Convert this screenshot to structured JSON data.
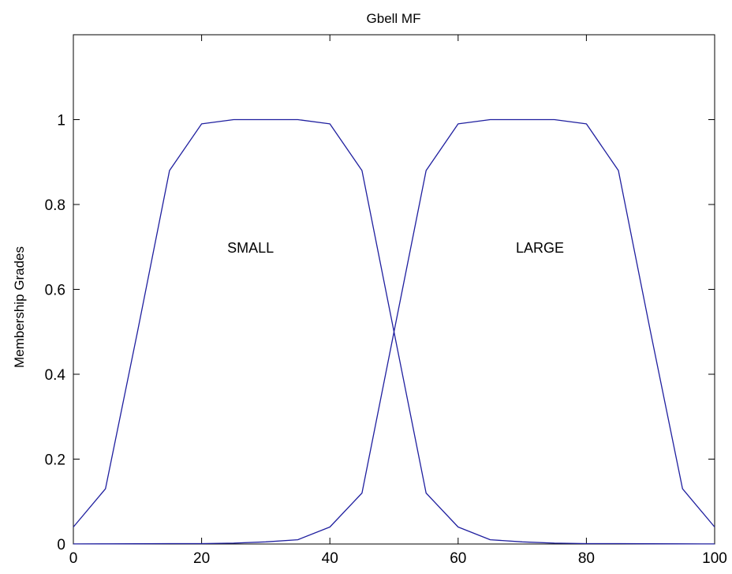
{
  "chart_data": {
    "type": "line",
    "title": "Gbell MF",
    "xlabel": "",
    "ylabel": "Membership Grades",
    "xlim": [
      0,
      100
    ],
    "ylim": [
      0,
      1.2
    ],
    "grid": false,
    "x_ticks": [
      0,
      20,
      40,
      60,
      80,
      100
    ],
    "x_tick_labels": [
      "0",
      "20",
      "40",
      "60",
      "80",
      "100"
    ],
    "y_ticks": [
      0,
      0.2,
      0.4,
      0.6,
      0.8,
      1
    ],
    "y_tick_labels": [
      "0",
      "0.2",
      "0.4",
      "0.6",
      "0.8",
      "1"
    ],
    "line_color": "#1f1f9f",
    "x": [
      0,
      5,
      10,
      15,
      20,
      25,
      30,
      35,
      40,
      45,
      50,
      55,
      60,
      65,
      70,
      75,
      80,
      85,
      90,
      95,
      100
    ],
    "series": [
      {
        "values": [
          0.04,
          0.13,
          0.5,
          0.88,
          0.99,
          1.0,
          1.0,
          1.0,
          0.99,
          0.88,
          0.5,
          0.12,
          0.04,
          0.01,
          0.005,
          0.002,
          0.001,
          0.001,
          0.0005,
          0.0003,
          0.0002
        ]
      },
      {
        "values": [
          0.0002,
          0.0003,
          0.0005,
          0.001,
          0.001,
          0.002,
          0.005,
          0.01,
          0.04,
          0.12,
          0.5,
          0.88,
          0.99,
          1.0,
          1.0,
          1.0,
          0.99,
          0.88,
          0.5,
          0.13,
          0.04
        ]
      }
    ],
    "annotations": [
      {
        "text": "SMALL",
        "x": 24,
        "y": 0.7
      },
      {
        "text": "LARGE",
        "x": 69,
        "y": 0.7
      }
    ]
  }
}
